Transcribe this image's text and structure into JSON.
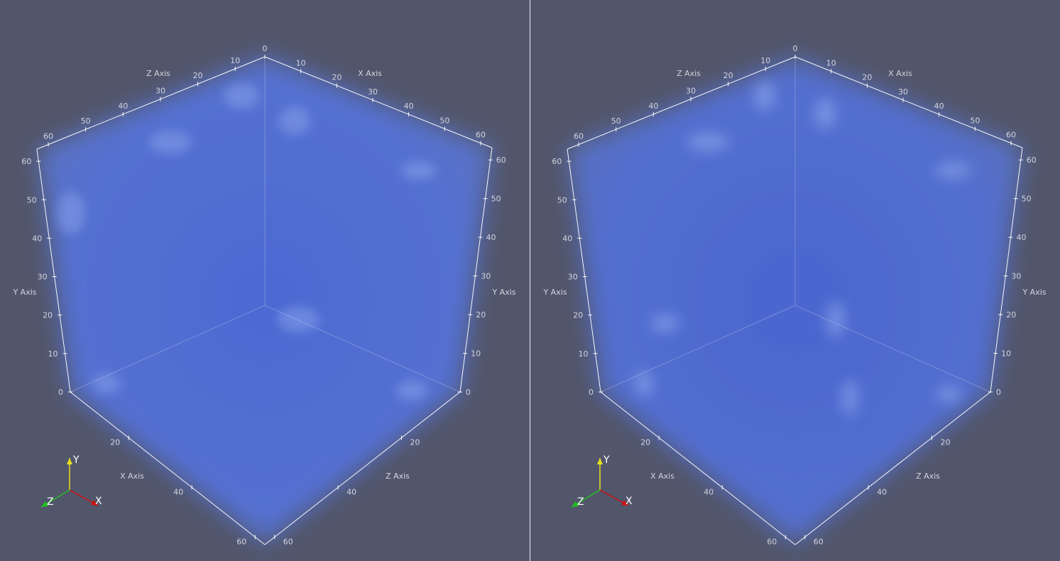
{
  "views": [
    {
      "id": "left",
      "axes": {
        "top_x": {
          "title": "X Axis",
          "ticks": [
            "0",
            "10",
            "20",
            "30",
            "40",
            "50",
            "60"
          ]
        },
        "top_z": {
          "title": "Z Axis",
          "ticks": [
            "10",
            "20",
            "30",
            "40",
            "50",
            "60"
          ]
        },
        "left_y": {
          "title": "Y Axis",
          "ticks": [
            "0",
            "10",
            "20",
            "30",
            "40",
            "50",
            "60"
          ]
        },
        "right_y": {
          "title": "Y Axis",
          "ticks": [
            "0",
            "10",
            "20",
            "30",
            "40",
            "50",
            "60"
          ]
        },
        "bottom_x": {
          "title": "X Axis",
          "ticks": [
            "20",
            "40",
            "60"
          ]
        },
        "bottom_z": {
          "title": "Z Axis",
          "ticks": [
            "20",
            "40",
            "60"
          ]
        }
      },
      "orientation": {
        "x": "X",
        "y": "Y",
        "z": "Z"
      }
    },
    {
      "id": "right",
      "axes": {
        "top_x": {
          "title": "X Axis",
          "ticks": [
            "0",
            "10",
            "20",
            "30",
            "40",
            "50",
            "60"
          ]
        },
        "top_z": {
          "title": "Z Axis",
          "ticks": [
            "10",
            "20",
            "30",
            "40",
            "50",
            "60"
          ]
        },
        "left_y": {
          "title": "Y Axis",
          "ticks": [
            "0",
            "10",
            "20",
            "30",
            "40",
            "50",
            "60"
          ]
        },
        "right_y": {
          "title": "Y Axis",
          "ticks": [
            "0",
            "10",
            "20",
            "30",
            "40",
            "50",
            "60"
          ]
        },
        "bottom_x": {
          "title": "X Axis",
          "ticks": [
            "20",
            "40",
            "60"
          ]
        },
        "bottom_z": {
          "title": "Z Axis",
          "ticks": [
            "20",
            "40",
            "60"
          ]
        }
      },
      "orientation": {
        "x": "X",
        "y": "Y",
        "z": "Z"
      }
    }
  ],
  "colors": {
    "background": "#52566b",
    "volume": "#5573d8",
    "axis_line": "#ffffff",
    "orientation_x": "#d01010",
    "orientation_y": "#e8e020",
    "orientation_z": "#20c020"
  }
}
